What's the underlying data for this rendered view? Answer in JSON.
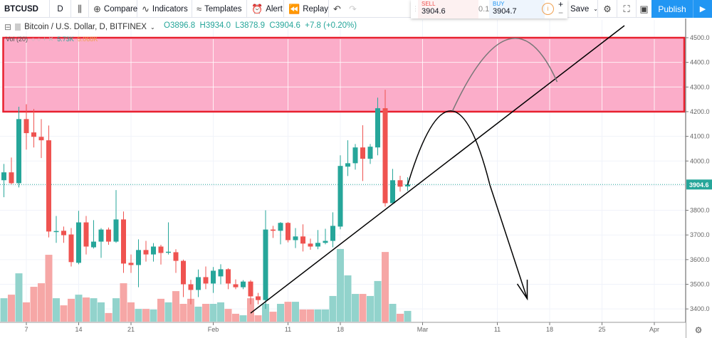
{
  "toolbar": {
    "symbol": "BTCUSD",
    "interval": "D",
    "compare": "Compare",
    "indicators": "Indicators",
    "templates": "Templates",
    "alert": "Alert",
    "replay": "Replay",
    "save": "Save",
    "publish": "Publish"
  },
  "trade_panel": {
    "sell_label": "SELL",
    "sell_price": "3904.6",
    "spread": "0.1",
    "buy_label": "BUY",
    "buy_price": "3904.7"
  },
  "legend": {
    "title": "Bitcoin / U.S. Dollar, D, BITFINEX",
    "open": "O3896.8",
    "high": "H3934.0",
    "low": "L3878.9",
    "close": "C3904.6",
    "change": "+7.8 (+0.20%)"
  },
  "volume_legend": {
    "label": "Vol (20)",
    "value": "5.73K",
    "ma": "5.068K"
  },
  "current_price_label": "3904.6",
  "colors": {
    "up": "#26a69a",
    "down": "#ef5350",
    "zone_fill": "#fbadc9",
    "zone_border": "#e8212f",
    "accent": "#2196f3"
  },
  "chart_data": {
    "type": "candlestick",
    "y_ticks": [
      "4500.0",
      "4400.0",
      "4300.0",
      "4200.0",
      "4100.0",
      "4000.0",
      "3800.0",
      "3700.0",
      "3600.0",
      "3500.0",
      "3400.0"
    ],
    "ylim": [
      3380,
      4560
    ],
    "x_ticks": [
      [
        "01-07",
        "7"
      ],
      [
        "01-14",
        "14"
      ],
      [
        "01-21",
        "21"
      ],
      [
        "02-01",
        "Feb"
      ],
      [
        "02-11",
        "11"
      ],
      [
        "02-18",
        "18"
      ],
      [
        "03-01",
        "Mar"
      ],
      [
        "03-11",
        "11"
      ],
      [
        "03-18",
        "18"
      ],
      [
        "03-25",
        "25"
      ],
      [
        "04-01",
        "Apr"
      ]
    ],
    "grid": true,
    "volume_unit": "K",
    "candles": [
      [
        "01-04",
        3922,
        3988,
        3853,
        3954,
        12.5
      ],
      [
        "01-05",
        3954,
        4014,
        3905,
        3910,
        14.4
      ],
      [
        "01-06",
        3910,
        4220,
        3893,
        4170,
        25.8
      ],
      [
        "01-07",
        4170,
        4230,
        4046,
        4113,
        10.3
      ],
      [
        "01-08",
        4116,
        4211,
        4055,
        4098,
        18.6
      ],
      [
        "01-09",
        4098,
        4170,
        4012,
        4084,
        20.5
      ],
      [
        "01-10",
        4084,
        4144,
        3690,
        3714,
        35.7
      ],
      [
        "01-11",
        3712,
        3777,
        3668,
        3716,
        12.5
      ],
      [
        "01-12",
        3717,
        3734,
        3668,
        3699,
        8.7
      ],
      [
        "01-13",
        3702,
        3728,
        3572,
        3590,
        12.2
      ],
      [
        "01-14",
        3587,
        3798,
        3581,
        3751,
        14.4
      ],
      [
        "01-15",
        3751,
        3777,
        3621,
        3653,
        12.9
      ],
      [
        "01-16",
        3650,
        3760,
        3645,
        3673,
        12.5
      ],
      [
        "01-17",
        3673,
        3728,
        3607,
        3722,
        10.3
      ],
      [
        "01-18",
        3722,
        3730,
        3660,
        3673,
        4.6
      ],
      [
        "01-19",
        3673,
        3882,
        3668,
        3763,
        12.5
      ],
      [
        "01-20",
        3763,
        3795,
        3546,
        3584,
        20.5
      ],
      [
        "01-21",
        3587,
        3621,
        3546,
        3578,
        10.3
      ],
      [
        "01-22",
        3578,
        3682,
        3488,
        3639,
        6.8
      ],
      [
        "01-23",
        3639,
        3676,
        3592,
        3621,
        6.8
      ],
      [
        "01-24",
        3621,
        3667,
        3592,
        3653,
        6.5
      ],
      [
        "01-25",
        3653,
        3660,
        3580,
        3627,
        12.2
      ],
      [
        "01-26",
        3628,
        3751,
        3621,
        3632,
        10.3
      ],
      [
        "01-27",
        3630,
        3642,
        3546,
        3595,
        16.3
      ],
      [
        "01-28",
        3595,
        3600,
        3448,
        3500,
        9.5
      ],
      [
        "01-29",
        3500,
        3518,
        3419,
        3477,
        12.2
      ],
      [
        "01-30",
        3477,
        3560,
        3448,
        3529,
        8.0
      ],
      [
        "01-31",
        3529,
        3572,
        3480,
        3503,
        9.5
      ],
      [
        "02-01",
        3503,
        3570,
        3465,
        3555,
        9.5
      ],
      [
        "02-02",
        3532,
        3581,
        3500,
        3561,
        10.3
      ],
      [
        "02-03",
        3561,
        3565,
        3480,
        3503,
        6.8
      ],
      [
        "02-04",
        3500,
        3520,
        3480,
        3488,
        4.2
      ],
      [
        "02-05",
        3488,
        3517,
        3480,
        3511,
        3.4
      ],
      [
        "02-06",
        3511,
        3517,
        3419,
        3451,
        12.5
      ],
      [
        "02-07",
        3451,
        3465,
        3419,
        3436,
        3.4
      ],
      [
        "02-08",
        3436,
        3800,
        3400,
        3722,
        9.5
      ],
      [
        "02-09",
        3722,
        3737,
        3688,
        3717,
        5.3
      ],
      [
        "02-10",
        3717,
        3752,
        3662,
        3749,
        9.5
      ],
      [
        "02-11",
        3749,
        3752,
        3670,
        3679,
        10.6
      ],
      [
        "02-12",
        3679,
        3728,
        3647,
        3694,
        10.6
      ],
      [
        "02-13",
        3694,
        3743,
        3633,
        3665,
        6.5
      ],
      [
        "02-14",
        3665,
        3685,
        3640,
        3653,
        6.5
      ],
      [
        "02-15",
        3653,
        3720,
        3642,
        3668,
        6.5
      ],
      [
        "02-16",
        3668,
        3725,
        3662,
        3676,
        6.5
      ],
      [
        "02-17",
        3676,
        3792,
        3650,
        3737,
        13.7
      ],
      [
        "02-18",
        3734,
        4023,
        3723,
        3980,
        38.8
      ],
      [
        "02-19",
        3977,
        4084,
        3939,
        3991,
        24.7
      ],
      [
        "02-20",
        3991,
        4069,
        3965,
        4055,
        14.8
      ],
      [
        "02-21",
        4055,
        4145,
        3919,
        4009,
        14.8
      ],
      [
        "02-22",
        4009,
        4069,
        3988,
        4058,
        13.7
      ],
      [
        "02-23",
        4055,
        4257,
        4023,
        4214,
        21.7
      ],
      [
        "02-24",
        4214,
        4289,
        3815,
        3829,
        37.2
      ],
      [
        "02-25",
        3829,
        3968,
        3829,
        3922,
        9.5
      ],
      [
        "02-26",
        3922,
        3940,
        3876,
        3896,
        4.2
      ],
      [
        "02-27",
        3896.8,
        3934.0,
        3878.9,
        3904.6,
        5.73
      ]
    ],
    "drawings": {
      "zone": {
        "from": "01-04",
        "to": "04-05",
        "top": 4500,
        "bottom": 4200
      },
      "trendline": [
        [
          "02-06",
          3383
        ],
        [
          "03-28",
          4549
        ]
      ],
      "projection_curve": [
        [
          "02-27",
          3903
        ],
        [
          "03-05",
          4203
        ],
        [
          "03-10",
          3903
        ]
      ],
      "projection_arrow": [
        [
          "03-10",
          3903
        ],
        [
          "03-15",
          3441
        ]
      ],
      "alt_arc": [
        [
          "03-05",
          4203
        ],
        [
          "03-13",
          4494
        ],
        [
          "03-19",
          4321
        ]
      ]
    }
  }
}
